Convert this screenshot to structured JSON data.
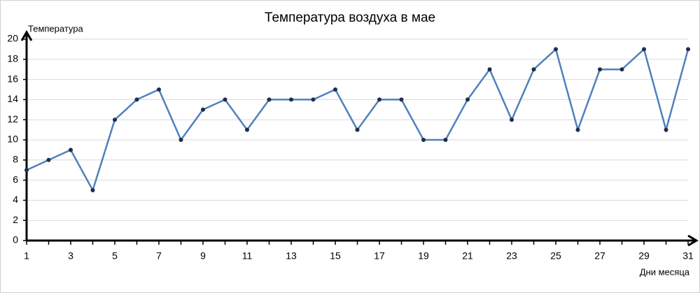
{
  "chart_data": {
    "type": "line",
    "title": "Температура воздуха в мае",
    "y_label": "Температура",
    "x_label": "Дни месяца",
    "x": [
      1,
      2,
      3,
      4,
      5,
      6,
      7,
      8,
      9,
      10,
      11,
      12,
      13,
      14,
      15,
      16,
      17,
      18,
      19,
      20,
      21,
      22,
      23,
      24,
      25,
      26,
      27,
      28,
      29,
      30,
      31
    ],
    "series": [
      {
        "color": "#4f81bd",
        "marker_color": "#1f2d4d",
        "values": [
          7,
          8,
          9,
          5,
          12,
          14,
          15,
          10,
          13,
          14,
          11,
          14,
          14,
          14,
          15,
          11,
          14,
          14,
          10,
          10,
          14,
          17,
          12,
          17,
          19,
          11,
          17,
          17,
          19,
          11,
          19
        ]
      }
    ],
    "xlim": [
      1,
      31
    ],
    "xticks": [
      1,
      3,
      5,
      7,
      9,
      11,
      13,
      15,
      17,
      19,
      21,
      23,
      25,
      27,
      29,
      31
    ],
    "ylim": [
      0,
      20
    ],
    "yticks": [
      0,
      2,
      4,
      6,
      8,
      10,
      12,
      14,
      16,
      18,
      20
    ],
    "grid": true
  }
}
